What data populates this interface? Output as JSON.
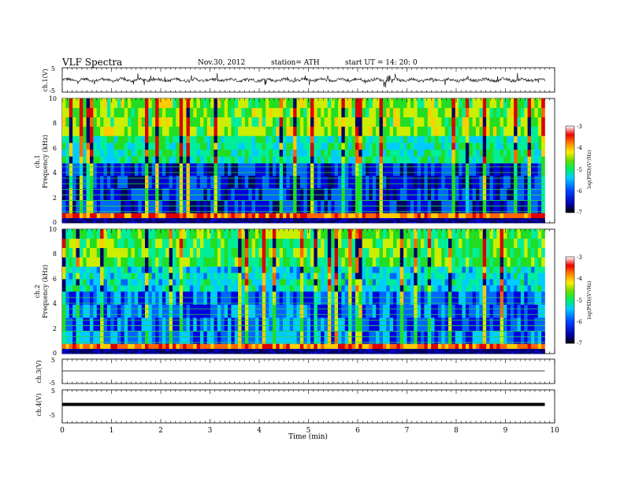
{
  "header": {
    "title": "VLF  Spectra",
    "date": "Nov.30, 2012",
    "station": "station= ATH",
    "start": "start  UT =   14: 20: 0"
  },
  "colors": {
    "colormap": [
      "#000066",
      "#0000dd",
      "#0066ff",
      "#00ccff",
      "#00ee99",
      "#22dd22",
      "#ccee00",
      "#ffcc00",
      "#ff6600",
      "#dd0000",
      "#ffffff"
    ]
  },
  "chart_data": [
    {
      "id": "ch1-waveform",
      "type": "line",
      "ylabel": "ch.1(V)",
      "ylim": [
        -5,
        5
      ],
      "yticks": [
        "5",
        "-5"
      ],
      "xlim": [
        0,
        10
      ],
      "description_level": "noisy waveform, mostly near 0 V with bursts up to about +/-2.5 V"
    },
    {
      "id": "ch1-spectrogram",
      "type": "heatmap",
      "ylabel_top": "ch.1",
      "ylabel": "Frequency  (kHz)",
      "ylim": [
        0,
        10
      ],
      "yticks": [
        "0",
        "2",
        "4",
        "6",
        "8",
        "10"
      ],
      "xlim": [
        0,
        9.8
      ],
      "colorbar": {
        "label": "log(PSD)(V²/Hz)",
        "ticks": [
          "-3",
          "-4",
          "-5",
          "-6",
          "-7"
        ],
        "range": [
          -7,
          -3
        ]
      },
      "bands": [
        {
          "fmin": 0,
          "fmax": 0.4,
          "level": -6.8
        },
        {
          "fmin": 0.4,
          "fmax": 0.8,
          "level": -3.6
        },
        {
          "fmin": 0.8,
          "fmax": 4.8,
          "level": -6.3
        },
        {
          "fmin": 4.8,
          "fmax": 7.0,
          "level": -5.2
        },
        {
          "fmin": 7.0,
          "fmax": 10,
          "level": -4.6
        }
      ]
    },
    {
      "id": "ch2-spectrogram",
      "type": "heatmap",
      "ylabel_top": "ch.2",
      "ylabel": "Frequency  (kHz)",
      "ylim": [
        0,
        10
      ],
      "yticks": [
        "0",
        "2",
        "4",
        "6",
        "8",
        "10"
      ],
      "xlim": [
        0,
        9.8
      ],
      "colorbar": {
        "label": "log(PSD)(V²/Hz)",
        "ticks": [
          "-3",
          "-4",
          "-5",
          "-6",
          "-7"
        ],
        "range": [
          -7,
          -3
        ]
      },
      "bands": [
        {
          "fmin": 0,
          "fmax": 0.4,
          "level": -6.8
        },
        {
          "fmin": 0.4,
          "fmax": 0.8,
          "level": -3.7
        },
        {
          "fmin": 0.8,
          "fmax": 5.0,
          "level": -6.0
        },
        {
          "fmin": 5.0,
          "fmax": 7.0,
          "level": -5.4
        },
        {
          "fmin": 7.0,
          "fmax": 10,
          "level": -4.8
        }
      ]
    },
    {
      "id": "ch3-waveform",
      "type": "line",
      "ylabel": "ch.3(V)",
      "ylim": [
        -5,
        5
      ],
      "yticks": [
        "5",
        "-5"
      ],
      "xlim": [
        0,
        10
      ],
      "description_level": "flat line near 0 V"
    },
    {
      "id": "ch4-waveform",
      "type": "line",
      "ylabel": "ch.4(V)",
      "ylim": [
        -5,
        5
      ],
      "yticks": [
        "5",
        "-5"
      ],
      "xlim": [
        0,
        10
      ],
      "description_level": "thick flat band near 0 V"
    }
  ],
  "xaxis": {
    "label": "Time  (min)",
    "ticks": [
      "0",
      "1",
      "2",
      "3",
      "4",
      "5",
      "6",
      "7",
      "8",
      "9",
      "10"
    ]
  }
}
